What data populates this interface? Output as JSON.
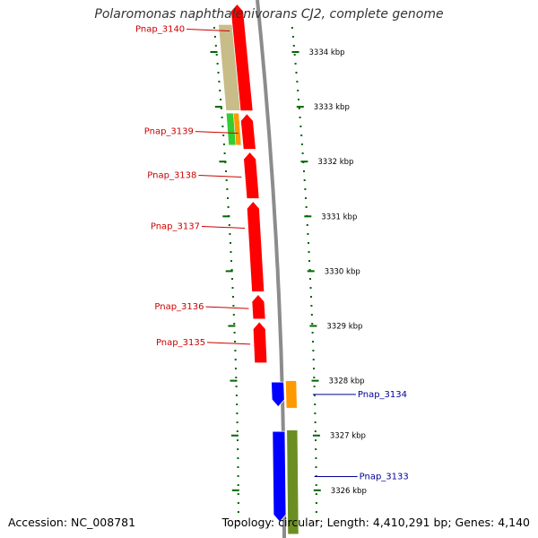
{
  "title": "Polaromonas naphthalenivorans CJ2, complete genome",
  "footer": {
    "accession": "Accession: NC_008781",
    "summary": "Topology: circular; Length: 4,410,291 bp; Genes: 4,140"
  },
  "scale": {
    "unit": "kbp",
    "ticks": [
      {
        "kbp": 3334,
        "label": "3334 kbp"
      },
      {
        "kbp": 3333,
        "label": "3333 kbp"
      },
      {
        "kbp": 3332,
        "label": "3332 kbp"
      },
      {
        "kbp": 3331,
        "label": "3331 kbp"
      },
      {
        "kbp": 3330,
        "label": "3330 kbp"
      },
      {
        "kbp": 3329,
        "label": "3329 kbp"
      },
      {
        "kbp": 3328,
        "label": "3328 kbp"
      },
      {
        "kbp": 3327,
        "label": "3327 kbp"
      },
      {
        "kbp": 3326,
        "label": "3326 kbp"
      }
    ]
  },
  "colors": {
    "reverse_strand": "#ff0000",
    "forward_strand": "#0000ff",
    "reverse_label": "#cc0000",
    "forward_label": "#000099",
    "backbone": "#8c8c8c",
    "tick": "#006600",
    "cog_khaki": "#c8bc88",
    "cog_green": "#33cc33",
    "cog_orange": "#ff9900",
    "cog_olive": "#6b8e23"
  },
  "genes": [
    {
      "name": "Pnap_3140",
      "strand": "reverse",
      "start_kbp": 3332.9,
      "end_kbp": 3334.9
    },
    {
      "name": "Pnap_3139",
      "strand": "reverse",
      "start_kbp": 3332.2,
      "end_kbp": 3332.9
    },
    {
      "name": "Pnap_3138",
      "strand": "reverse",
      "start_kbp": 3331.3,
      "end_kbp": 3332.2
    },
    {
      "name": "Pnap_3137",
      "strand": "reverse",
      "start_kbp": 3329.6,
      "end_kbp": 3331.3
    },
    {
      "name": "Pnap_3136",
      "strand": "reverse",
      "start_kbp": 3329.1,
      "end_kbp": 3329.6
    },
    {
      "name": "Pnap_3135",
      "strand": "reverse",
      "start_kbp": 3328.3,
      "end_kbp": 3329.1
    },
    {
      "name": "Pnap_3134",
      "strand": "forward",
      "start_kbp": 3327.5,
      "end_kbp": 3328.0
    },
    {
      "name": "Pnap_3133",
      "strand": "forward",
      "start_kbp": 3325.4,
      "end_kbp": 3327.1
    }
  ]
}
